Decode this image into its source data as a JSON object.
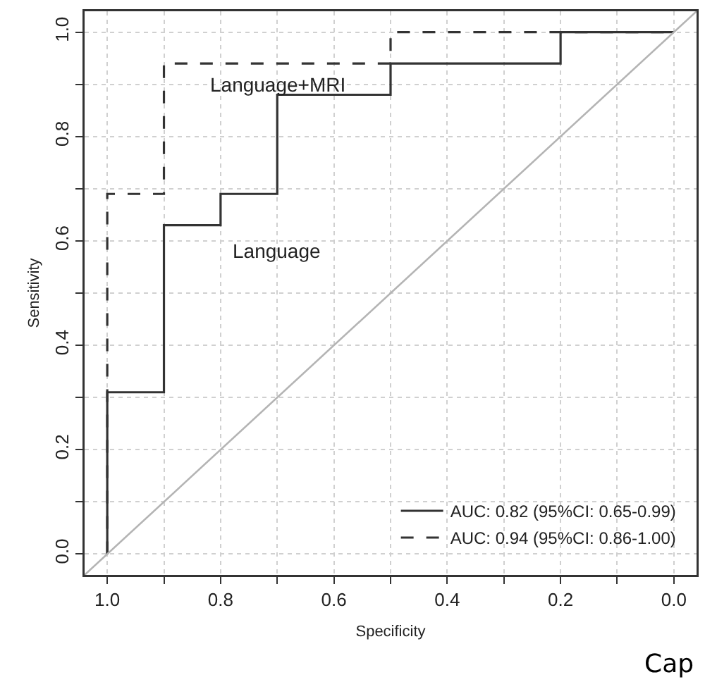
{
  "chart_data": {
    "type": "step",
    "xlabel": "Specificity",
    "ylabel": "Sensitivity",
    "xlim": [
      1.04,
      -0.04
    ],
    "ylim": [
      -0.04,
      1.04
    ],
    "xticks": [
      {
        "value": 1.0,
        "label": "1.0"
      },
      {
        "value": 0.9,
        "label": null
      },
      {
        "value": 0.8,
        "label": "0.8"
      },
      {
        "value": 0.7,
        "label": null
      },
      {
        "value": 0.6,
        "label": "0.6"
      },
      {
        "value": 0.5,
        "label": null
      },
      {
        "value": 0.4,
        "label": "0.4"
      },
      {
        "value": 0.3,
        "label": null
      },
      {
        "value": 0.2,
        "label": "0.2"
      },
      {
        "value": 0.1,
        "label": null
      },
      {
        "value": 0,
        "label": "0.0"
      }
    ],
    "yticks": [
      {
        "value": 0,
        "label": "0.0"
      },
      {
        "value": 0.1,
        "label": null
      },
      {
        "value": 0.2,
        "label": "0.2"
      },
      {
        "value": 0.3,
        "label": null
      },
      {
        "value": 0.4,
        "label": "0.4"
      },
      {
        "value": 0.5,
        "label": null
      },
      {
        "value": 0.6,
        "label": "0.6"
      },
      {
        "value": 0.7,
        "label": null
      },
      {
        "value": 0.8,
        "label": "0.8"
      },
      {
        "value": 0.9,
        "label": null
      },
      {
        "value": 1.0,
        "label": "1.0"
      }
    ],
    "grid": true,
    "legend": "bottom right",
    "series": [
      {
        "name": "AUC: 0.82 (95%CI: 0.65-0.99)",
        "color": "#333333",
        "line_style": "solid",
        "x": [
          1,
          1,
          0.9,
          0.8,
          0.7,
          0.5,
          0.2,
          0
        ],
        "values": [
          0,
          0.31,
          0.63,
          0.69,
          0.88,
          0.94,
          1,
          1
        ]
      },
      {
        "name": "AUC: 0.94 (95%CI: 0.86-1.00)",
        "color": "#333333",
        "line_style": "dashed",
        "x": [
          1,
          1,
          0.9,
          0.5,
          0
        ],
        "values": [
          0,
          0.69,
          0.94,
          1,
          1
        ]
      },
      {
        "type": "line",
        "color": "#b4b4b4",
        "line_style": "solid",
        "x": [
          1.04,
          -0.04
        ],
        "values": [
          -0.04,
          1.04
        ]
      }
    ],
    "annotations": [
      "Language+MRI",
      "Language",
      "Cap"
    ]
  }
}
